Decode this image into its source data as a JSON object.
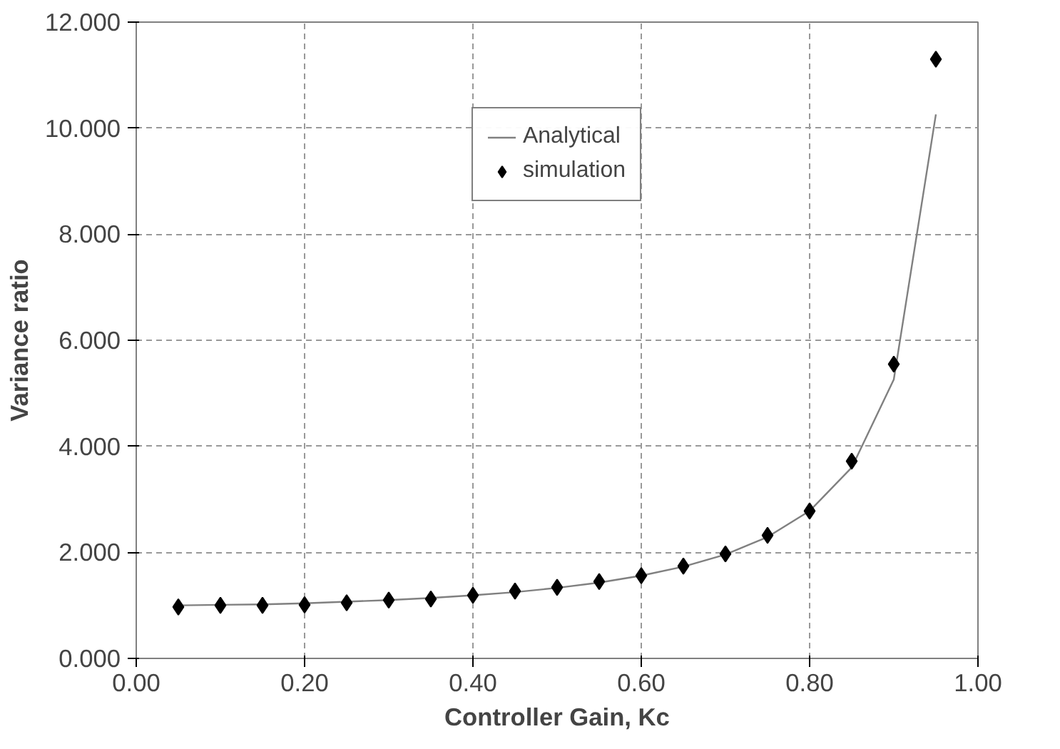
{
  "chart_data": {
    "type": "line",
    "xlabel": "Controller Gain, Kc",
    "ylabel": "Variance ratio",
    "x": [
      0.05,
      0.1,
      0.15,
      0.2,
      0.25,
      0.3,
      0.35,
      0.4,
      0.45,
      0.5,
      0.55,
      0.6,
      0.65,
      0.7,
      0.75,
      0.8,
      0.85,
      0.9,
      0.95
    ],
    "series": [
      {
        "name": "Analytical",
        "color": "#808080",
        "marker": "none",
        "line_style": "solid",
        "values": [
          1.0,
          1.01,
          1.02,
          1.04,
          1.07,
          1.1,
          1.14,
          1.19,
          1.25,
          1.33,
          1.43,
          1.56,
          1.73,
          1.96,
          2.29,
          2.78,
          3.6,
          5.26,
          10.26
        ]
      },
      {
        "name": "simulation",
        "type": "scatter",
        "color": "#000000",
        "marker": "diamond",
        "values": [
          0.97,
          1.0,
          1.0,
          1.01,
          1.05,
          1.1,
          1.12,
          1.19,
          1.27,
          1.34,
          1.45,
          1.56,
          1.74,
          1.97,
          2.32,
          2.78,
          3.72,
          5.55,
          11.3
        ]
      }
    ],
    "xlim": [
      0,
      1
    ],
    "ylim": [
      0,
      12
    ],
    "xticks": [
      {
        "value": 0,
        "label": "0.00"
      },
      {
        "value": 0.2,
        "label": "0.20"
      },
      {
        "value": 0.4,
        "label": "0.40"
      },
      {
        "value": 0.6,
        "label": "0.60"
      },
      {
        "value": 0.8,
        "label": "0.80"
      },
      {
        "value": 1,
        "label": "1.00"
      }
    ],
    "yticks": [
      {
        "value": 0,
        "label": "0.000"
      },
      {
        "value": 2,
        "label": "2.000"
      },
      {
        "value": 4,
        "label": "4.000"
      },
      {
        "value": 6,
        "label": "6.000"
      },
      {
        "value": 8,
        "label": "8.000"
      },
      {
        "value": 10,
        "label": "10.000"
      },
      {
        "value": 12,
        "label": "12.000"
      }
    ],
    "grid": true,
    "legend": "top"
  }
}
